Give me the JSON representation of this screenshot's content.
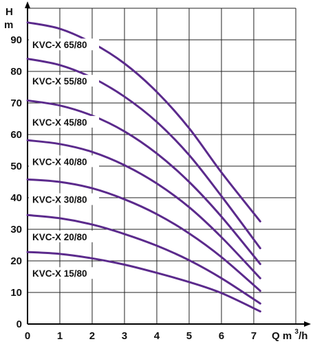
{
  "chart_data": {
    "type": "line",
    "title": "",
    "ylabel": "H\nm",
    "xlabel": "Q m3/h",
    "y_axis_label_lines": [
      "H",
      "m"
    ],
    "x_axis_label_text": "Q m",
    "x_axis_label_exp": "3",
    "x_axis_label_suffix": "/h",
    "xlim": [
      0,
      8.3
    ],
    "ylim": [
      0,
      100
    ],
    "x_ticks": [
      0,
      1,
      2,
      3,
      4,
      5,
      6,
      7
    ],
    "y_ticks": [
      0,
      10,
      20,
      30,
      40,
      50,
      60,
      70,
      80,
      90
    ],
    "grid": true,
    "line_color": "#5b2a8c",
    "series": [
      {
        "name": "KVC-X 65/80",
        "x": [
          0,
          1,
          2,
          3,
          4,
          5,
          6,
          7.2
        ],
        "y": [
          95.5,
          93.5,
          89,
          82.5,
          73.5,
          62,
          48,
          32.5
        ]
      },
      {
        "name": "KVC-X 55/80",
        "x": [
          0,
          1,
          2,
          3,
          4,
          5,
          6,
          7.2
        ],
        "y": [
          84,
          82,
          78,
          72,
          64,
          53.5,
          40.5,
          24
        ]
      },
      {
        "name": "KVC-X 45/80",
        "x": [
          0,
          1,
          2,
          3,
          4,
          5,
          6,
          7.2
        ],
        "y": [
          70.8,
          69.2,
          66,
          61,
          54,
          45,
          34,
          19
        ]
      },
      {
        "name": "KVC-X 40/80",
        "x": [
          0,
          1,
          2,
          3,
          4,
          5,
          6,
          7.2
        ],
        "y": [
          58.2,
          57,
          54.5,
          50.3,
          44.5,
          37,
          27.5,
          14.5
        ]
      },
      {
        "name": "KVC-X 30/80",
        "x": [
          0,
          1,
          2,
          3,
          4,
          5,
          6,
          7.2
        ],
        "y": [
          45.8,
          45,
          43,
          39.5,
          34.8,
          28.7,
          21.2,
          10.5
        ]
      },
      {
        "name": "KVC-X 20/80",
        "x": [
          0,
          1,
          2,
          3,
          4,
          5,
          6,
          7.2
        ],
        "y": [
          34.5,
          33.5,
          31.5,
          28.5,
          24.8,
          20.2,
          14.5,
          6.5
        ]
      },
      {
        "name": "KVC-X 15/80",
        "x": [
          0,
          1,
          2,
          3,
          4,
          5,
          6,
          7.2
        ],
        "y": [
          22.8,
          22.2,
          20.8,
          18.8,
          16.2,
          13.3,
          9.8,
          4
        ]
      }
    ],
    "curve_labels": [
      {
        "text": "KVC-X 65/80",
        "at_y": 88
      },
      {
        "text": "KVC-X 55/80",
        "at_y": 76.5
      },
      {
        "text": "KVC-X 45/80",
        "at_y": 63.5
      },
      {
        "text": "KVC-X 40/80",
        "at_y": 51
      },
      {
        "text": "KVC-X 30/80",
        "at_y": 39
      },
      {
        "text": "KVC-X 20/80",
        "at_y": 27.2
      },
      {
        "text": "KVC-X 15/80",
        "at_y": 15.6
      }
    ]
  }
}
